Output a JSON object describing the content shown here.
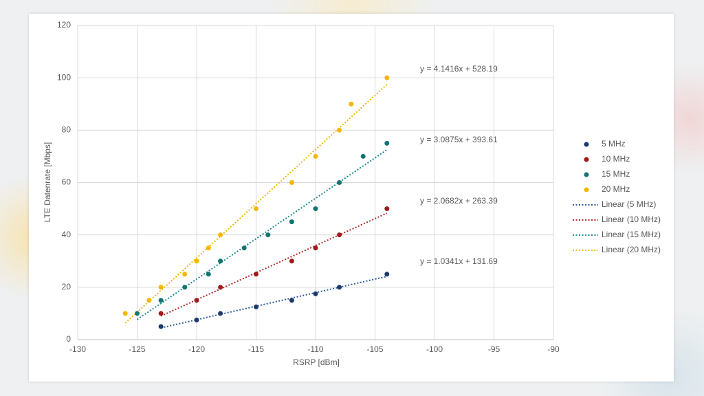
{
  "chart_data": {
    "type": "scatter",
    "x_label": "RSRP [dBm]",
    "y_label": "LTE Datenrate [Mbps]",
    "xlim": [
      -130,
      -90
    ],
    "xticks": [
      -130,
      -125,
      -120,
      -115,
      -110,
      -105,
      -100,
      -95,
      -90
    ],
    "ylim": [
      0,
      120
    ],
    "yticks": [
      0,
      20,
      40,
      60,
      80,
      100,
      120
    ],
    "grid": true,
    "legend": "right",
    "series": [
      {
        "name": "5 MHz",
        "color": "#1b3a6b",
        "x": [
          -123,
          -120,
          -118,
          -115,
          -112,
          -110,
          -108,
          -104
        ],
        "values": [
          5,
          7.5,
          10,
          12.5,
          15,
          17.5,
          20,
          25
        ]
      },
      {
        "name": "10 MHz",
        "color": "#9e1b1b",
        "x": [
          -123,
          -120,
          -118,
          -115,
          -112,
          -110,
          -108,
          -104
        ],
        "values": [
          10,
          15,
          20,
          25,
          30,
          35,
          40,
          50
        ]
      },
      {
        "name": "15 MHz",
        "color": "#167373",
        "x": [
          -125,
          -123,
          -121,
          -119,
          -118,
          -116,
          -114,
          -112,
          -110,
          -108,
          -106,
          -104
        ],
        "values": [
          10,
          15,
          20,
          25,
          30,
          35,
          40,
          45,
          50,
          60,
          70,
          75
        ]
      },
      {
        "name": "20 MHz",
        "color": "#f2b705",
        "x": [
          -126,
          -124,
          -123,
          -121,
          -120,
          -119,
          -118,
          -115,
          -112,
          -110,
          -108,
          -107,
          -104
        ],
        "values": [
          10,
          15,
          20,
          25,
          30,
          35,
          40,
          50,
          60,
          70,
          80,
          90,
          100
        ]
      }
    ],
    "trendlines": [
      {
        "name": "Linear (5 MHz)",
        "color": "#2a5a9c",
        "equation": "y = 1.0341x + 131.69",
        "slope": 1.0341,
        "intercept": 131.69
      },
      {
        "name": "Linear (10 MHz)",
        "color": "#b02a2a",
        "equation": "y = 2.0682x + 263.39",
        "slope": 2.0682,
        "intercept": 263.39
      },
      {
        "name": "Linear (15 MHz)",
        "color": "#1a8a8a",
        "equation": "y = 3.0875x + 393.61",
        "slope": 3.0875,
        "intercept": 393.61
      },
      {
        "name": "Linear (20 MHz)",
        "color": "#f2b705",
        "equation": "y = 4.1416x + 528.19",
        "slope": 4.1416,
        "intercept": 528.19
      }
    ]
  }
}
